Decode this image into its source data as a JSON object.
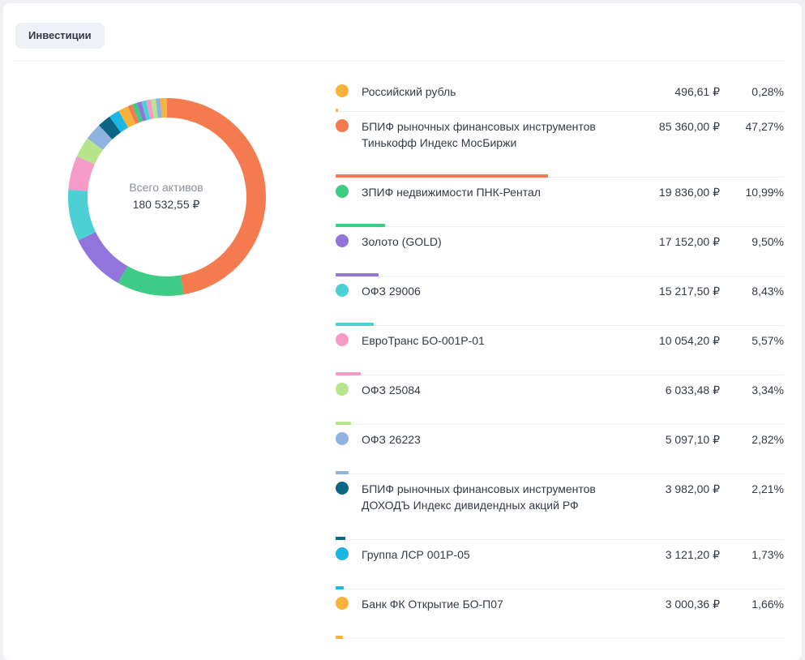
{
  "tab": {
    "label": "Инвестиции"
  },
  "summary": {
    "label": "Всего активов",
    "value": "180 532,55 ₽"
  },
  "assets": [
    {
      "name": "Российский рубль",
      "amount": "496,61 ₽",
      "percent": "0,28%",
      "share": 0.28,
      "color": "#f7b23b"
    },
    {
      "name": "БПИФ рыночных финансовых инструментов\nТинькофф Индекс МосБиржи",
      "amount": "85 360,00 ₽",
      "percent": "47,27%",
      "share": 47.27,
      "color": "#f47b4f"
    },
    {
      "name": "ЗПИФ недвижимости ПНК-Рентал",
      "amount": "19 836,00 ₽",
      "percent": "10,99%",
      "share": 10.99,
      "color": "#3ecb85"
    },
    {
      "name": "Золото (GOLD)",
      "amount": "17 152,00 ₽",
      "percent": "9,50%",
      "share": 9.5,
      "color": "#9175dc"
    },
    {
      "name": "ОФЗ 29006",
      "amount": "15 217,50 ₽",
      "percent": "8,43%",
      "share": 8.43,
      "color": "#4dd0d4"
    },
    {
      "name": "ЕвроТранс БО-001Р-01",
      "amount": "10 054,20 ₽",
      "percent": "5,57%",
      "share": 5.57,
      "color": "#f69ac8"
    },
    {
      "name": "ОФЗ 25084",
      "amount": "6 033,48 ₽",
      "percent": "3,34%",
      "share": 3.34,
      "color": "#b6e58c"
    },
    {
      "name": "ОФЗ 26223",
      "amount": "5 097,10 ₽",
      "percent": "2,82%",
      "share": 2.82,
      "color": "#8fb2de"
    },
    {
      "name": "БПИФ рыночных финансовых инструментов\nДОХОДЪ Индекс дивидендных акций РФ",
      "amount": "3 982,00 ₽",
      "percent": "2,21%",
      "share": 2.21,
      "color": "#0b6584"
    },
    {
      "name": "Группа ЛСР 001Р-05",
      "amount": "3 121,20 ₽",
      "percent": "1,73%",
      "share": 1.73,
      "color": "#1cb6e6"
    },
    {
      "name": "Банк ФК Открытие БО-П07",
      "amount": "3 000,36 ₽",
      "percent": "1,66%",
      "share": 1.66,
      "color": "#f7b23b"
    }
  ],
  "donut_tail_colors": [
    "#f47b4f",
    "#3ecb85",
    "#9175dc",
    "#4dd0d4",
    "#f69ac8",
    "#b6e58c",
    "#8fb2de",
    "#f7b23b"
  ]
}
